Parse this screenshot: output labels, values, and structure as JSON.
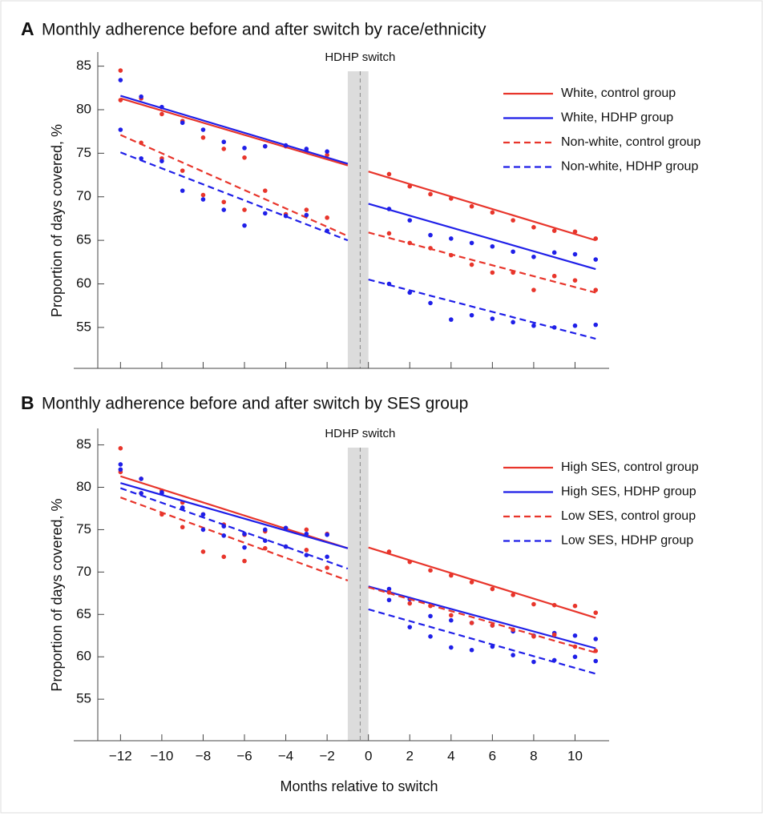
{
  "chart_data": [
    {
      "type": "scatter",
      "panel": "A",
      "title": "Monthly adherence before and after switch by race/ethnicity",
      "annotation": "HDHP switch",
      "switch_band": [
        -1,
        0
      ],
      "switch_line": -0.4,
      "ylabel": "Proportion of days covered, %",
      "x_tick_labels": false,
      "x": [
        -12,
        -11,
        -10,
        -9,
        -8,
        -7,
        -6,
        -5,
        -4,
        -3,
        -2,
        1,
        2,
        3,
        4,
        5,
        6,
        7,
        8,
        9,
        10,
        11
      ],
      "xlim": [
        -13.1,
        11.65
      ],
      "ylim": [
        50.3,
        85.7
      ],
      "xticks": [
        -12,
        -10,
        -8,
        -6,
        -4,
        -2,
        0,
        2,
        4,
        6,
        8,
        10
      ],
      "yticks": [
        55,
        60,
        65,
        70,
        75,
        80,
        85
      ],
      "fit_x": [
        [
          -12,
          -1
        ],
        [
          0,
          11
        ]
      ],
      "series": [
        {
          "name": "White, control group",
          "color": "#e8352b",
          "dash": false,
          "values": [
            84.5,
            81.3,
            79.5,
            78.7,
            76.8,
            75.5,
            74.5,
            75.8,
            75.8,
            75.2,
            74.8,
            72.6,
            71.2,
            70.3,
            69.8,
            68.9,
            68.2,
            67.3,
            66.5,
            66.1,
            66.0,
            65.2
          ],
          "fit": [
            [
              81.3,
              73.6
            ],
            [
              72.9,
              65.0
            ]
          ]
        },
        {
          "name": "White, HDHP group",
          "color": "#1f1fe8",
          "dash": false,
          "values": [
            83.4,
            81.5,
            80.3,
            78.5,
            77.7,
            76.3,
            75.6,
            75.8,
            75.9,
            75.5,
            75.2,
            68.6,
            67.3,
            65.6,
            65.2,
            64.7,
            64.3,
            63.7,
            63.1,
            63.6,
            63.4,
            62.8
          ],
          "fit": [
            [
              81.6,
              73.8
            ],
            [
              69.2,
              61.7
            ]
          ]
        },
        {
          "name": "Non-white, control group",
          "color": "#e8352b",
          "dash": true,
          "values": [
            81.1,
            76.2,
            74.4,
            73.0,
            70.2,
            69.4,
            68.5,
            70.7,
            68.0,
            68.5,
            67.6,
            65.8,
            64.7,
            64.1,
            63.3,
            62.2,
            61.3,
            61.3,
            59.3,
            60.9,
            60.4,
            59.3
          ],
          "fit": [
            [
              77.1,
              65.5
            ],
            [
              65.9,
              59.0
            ]
          ]
        },
        {
          "name": "Non-white, HDHP group",
          "color": "#1f1fe8",
          "dash": true,
          "values": [
            77.7,
            74.4,
            74.1,
            70.7,
            69.7,
            68.5,
            66.7,
            68.1,
            67.8,
            67.9,
            66.1,
            60.0,
            59.0,
            57.8,
            55.9,
            56.4,
            56.0,
            55.6,
            55.2,
            55.0,
            55.2,
            55.3
          ],
          "fit": [
            [
              75.1,
              65.0
            ],
            [
              60.5,
              53.7
            ]
          ]
        }
      ]
    },
    {
      "type": "scatter",
      "panel": "B",
      "title": "Monthly adherence before and after switch by SES group",
      "annotation": "HDHP switch",
      "switch_band": [
        -1,
        0
      ],
      "switch_line": -0.4,
      "ylabel": "Proportion of days covered, %",
      "xlabel": "Months relative to switch",
      "x_tick_labels": true,
      "x": [
        -12,
        -11,
        -10,
        -9,
        -8,
        -7,
        -6,
        -5,
        -4,
        -3,
        -2,
        1,
        2,
        3,
        4,
        5,
        6,
        7,
        8,
        9,
        10,
        11
      ],
      "xlim": [
        -13.1,
        11.65
      ],
      "ylim": [
        50.1,
        86
      ],
      "xticks": [
        {
          "value": -12,
          "label": "−12"
        },
        {
          "value": -10,
          "label": "−10"
        },
        {
          "value": -8,
          "label": "−8"
        },
        {
          "value": -6,
          "label": "−6"
        },
        {
          "value": -4,
          "label": "−4"
        },
        {
          "value": -2,
          "label": "−2"
        },
        0,
        2,
        4,
        6,
        8,
        10
      ],
      "yticks": [
        55,
        60,
        65,
        70,
        75,
        80,
        85
      ],
      "fit_x": [
        [
          -12,
          -1
        ],
        [
          0,
          11
        ]
      ],
      "series": [
        {
          "name": "High SES, control group",
          "color": "#e8352b",
          "dash": false,
          "values": [
            84.6,
            81.0,
            79.6,
            78.2,
            76.8,
            75.6,
            74.4,
            74.8,
            75.2,
            75.0,
            74.5,
            72.4,
            71.2,
            70.2,
            69.6,
            68.8,
            68.0,
            67.3,
            66.2,
            66.1,
            66.0,
            65.2
          ],
          "fit": [
            [
              81.3,
              72.8
            ],
            [
              72.9,
              64.6
            ]
          ]
        },
        {
          "name": "High SES, HDHP group",
          "color": "#1f1fe8",
          "dash": false,
          "values": [
            82.7,
            81.0,
            79.3,
            77.5,
            76.8,
            75.4,
            74.5,
            75.0,
            75.2,
            74.5,
            74.4,
            68.0,
            66.8,
            64.8,
            64.3,
            64.0,
            63.7,
            63.0,
            62.5,
            62.8,
            62.5,
            62.1
          ],
          "fit": [
            [
              80.5,
              72.8
            ],
            [
              68.3,
              61.0
            ]
          ]
        },
        {
          "name": "Low SES, control group",
          "color": "#e8352b",
          "dash": true,
          "values": [
            81.8,
            79.3,
            76.8,
            75.3,
            72.4,
            71.8,
            71.3,
            72.8,
            73.0,
            72.6,
            70.5,
            67.6,
            66.3,
            66.0,
            64.9,
            64.0,
            63.7,
            63.2,
            62.4,
            62.6,
            61.2,
            60.7
          ],
          "fit": [
            [
              78.8,
              69.0
            ],
            [
              68.2,
              60.5
            ]
          ]
        },
        {
          "name": "Low SES, HDHP group",
          "color": "#1f1fe8",
          "dash": true,
          "values": [
            82.1,
            79.3,
            79.4,
            77.6,
            75.0,
            74.3,
            72.9,
            73.7,
            73.0,
            72.0,
            71.8,
            66.7,
            63.5,
            62.4,
            61.1,
            60.8,
            61.2,
            60.2,
            59.4,
            59.6,
            60.0,
            59.5
          ],
          "fit": [
            [
              79.9,
              70.4
            ],
            [
              65.6,
              58.0
            ]
          ]
        }
      ]
    }
  ]
}
